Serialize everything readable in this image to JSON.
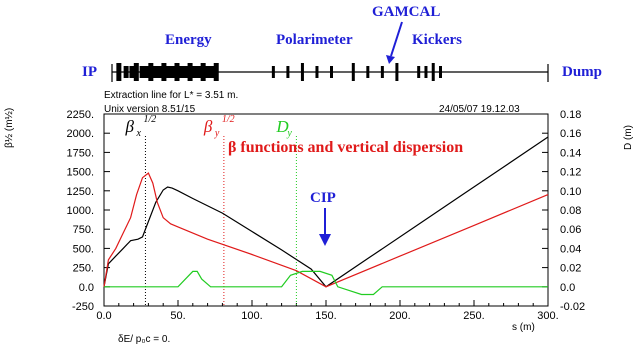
{
  "chart_data": {
    "type": "line",
    "title": "β functions and vertical dispersion",
    "header_text": "Extraction line for L* = 3.51 m.",
    "version_text": "Unix version 8.51/15",
    "date_text": "24/05/07  19.12.03",
    "xlabel": "s (m)",
    "ylabel_left": "β½ (m½)",
    "ylabel_right": "D (m)",
    "footer_text": "δE/ p₀c  =  0.",
    "xlim": [
      0,
      300
    ],
    "ylim_left": [
      -250,
      2250
    ],
    "ylim_right": [
      -0.02,
      0.18
    ],
    "x_ticks": [
      "0.0",
      "50.",
      "100.",
      "150.",
      "200.",
      "250.",
      "300."
    ],
    "y_ticks_left": [
      "-250",
      "0.0",
      "250.",
      "500.",
      "750.",
      "1000.",
      "1250.",
      "1500.",
      "1750.",
      "2000.",
      "2250."
    ],
    "y_ticks_right": [
      "-0.02",
      "0.0",
      "0.02",
      "0.04",
      "0.06",
      "0.08",
      "0.10",
      "0.12",
      "0.14",
      "0.16",
      "0.18"
    ],
    "grid": false,
    "series": [
      {
        "name": "βx",
        "axis": "left",
        "color": "#000000",
        "x": [
          0,
          3,
          8,
          13,
          18,
          23,
          26,
          30,
          35,
          40,
          43,
          46,
          50,
          60,
          80,
          100,
          120,
          140,
          150,
          180,
          210,
          240,
          270,
          300
        ],
        "y": [
          0,
          300,
          400,
          500,
          600,
          620,
          650,
          850,
          1100,
          1260,
          1300,
          1285,
          1250,
          1150,
          960,
          720,
          480,
          230,
          0,
          390,
          780,
          1170,
          1560,
          1950
        ]
      },
      {
        "name": "βy",
        "axis": "left",
        "color": "#e01a1a",
        "x": [
          0,
          3,
          8,
          13,
          18,
          22,
          26,
          30,
          33,
          36,
          40,
          45,
          50,
          70,
          100,
          130,
          150,
          200,
          250,
          300
        ],
        "y": [
          0,
          350,
          500,
          700,
          900,
          1200,
          1420,
          1480,
          1350,
          1100,
          900,
          820,
          780,
          620,
          420,
          210,
          0,
          400,
          800,
          1200
        ]
      },
      {
        "name": "Dy",
        "axis": "right",
        "color": "#22cc22",
        "x": [
          0,
          50,
          55,
          60,
          63,
          66,
          72,
          120,
          126,
          134,
          146,
          154,
          158,
          174,
          182,
          188,
          194,
          300
        ],
        "y": [
          0,
          0,
          0.008,
          0.016,
          0.016,
          0.008,
          0,
          0,
          0.012,
          0.016,
          0.016,
          0.012,
          0.0,
          -0.008,
          -0.008,
          0,
          0,
          0
        ]
      }
    ],
    "series_labels": [
      {
        "name": "βx",
        "symbol": "β",
        "sub": "x",
        "sup": "1/2",
        "color": "#000000",
        "marker_x": 28
      },
      {
        "name": "βy",
        "symbol": "β",
        "sub": "y",
        "sup": "1/2",
        "color": "#e01a1a",
        "marker_x": 81
      },
      {
        "name": "Dy",
        "symbol": "D",
        "sub": "y",
        "sup": "",
        "color": "#22cc22",
        "marker_x": 130
      }
    ],
    "beamline": {
      "start_label": "IP",
      "end_label": "Dump",
      "section_labels": [
        "Energy",
        "Polarimeter",
        "GAMCAL",
        "Kickers"
      ],
      "elements_s": [
        3,
        8,
        12,
        15,
        19,
        22,
        25,
        28,
        31,
        34,
        37,
        40,
        43,
        46,
        49,
        52,
        55,
        58,
        61,
        64,
        67,
        70,
        110,
        120,
        130,
        140,
        150,
        165,
        175,
        185,
        195,
        210,
        215,
        220,
        225
      ]
    },
    "annotation": {
      "label": "CIP",
      "x": 150
    }
  }
}
